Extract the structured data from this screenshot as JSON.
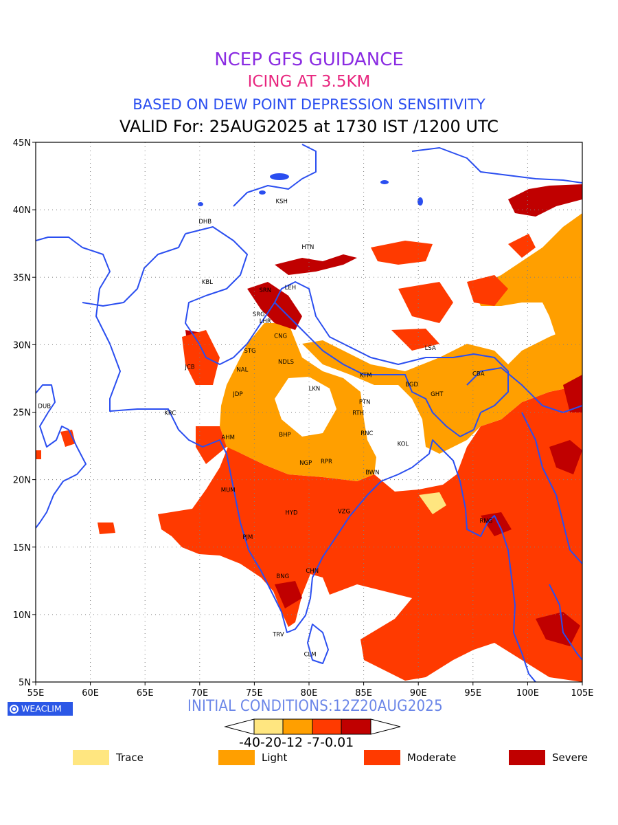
{
  "header": {
    "line1": "NCEP GFS GUIDANCE",
    "line2": "ICING AT 3.5KM",
    "line3": "BASED ON DEW POINT DEPRESSION SENSITIVITY",
    "line4": "VALID For: 25AUG2025 at 1730 IST /1200 UTC"
  },
  "axes": {
    "lat_labels": [
      "45N",
      "40N",
      "35N",
      "30N",
      "25N",
      "20N",
      "15N",
      "10N",
      "5N"
    ],
    "lon_labels": [
      "55E",
      "60E",
      "65E",
      "70E",
      "75E",
      "80E",
      "85E",
      "90E",
      "95E",
      "100E",
      "105E"
    ],
    "lon_range": [
      55,
      105
    ],
    "lat_range": [
      5,
      45
    ]
  },
  "stations": [
    {
      "code": "KSH",
      "lon": 77.5,
      "lat": 40.5
    },
    {
      "code": "DHB",
      "lon": 70.5,
      "lat": 39.0
    },
    {
      "code": "HTN",
      "lon": 79.9,
      "lat": 37.1
    },
    {
      "code": "KBL",
      "lon": 70.7,
      "lat": 34.5
    },
    {
      "code": "SRN",
      "lon": 76.0,
      "lat": 33.9
    },
    {
      "code": "SRG",
      "lon": 75.4,
      "lat": 32.1
    },
    {
      "code": "LHR",
      "lon": 76.0,
      "lat": 31.6
    },
    {
      "code": "LEH",
      "lon": 78.3,
      "lat": 34.1
    },
    {
      "code": "CNG",
      "lon": 77.4,
      "lat": 30.5
    },
    {
      "code": "STG",
      "lon": 74.6,
      "lat": 29.4
    },
    {
      "code": "NDLS",
      "lon": 77.9,
      "lat": 28.6
    },
    {
      "code": "JCB",
      "lon": 69.1,
      "lat": 28.2
    },
    {
      "code": "NAL",
      "lon": 73.9,
      "lat": 28.0
    },
    {
      "code": "LKN",
      "lon": 80.5,
      "lat": 26.6
    },
    {
      "code": "KTM",
      "lon": 85.2,
      "lat": 27.6
    },
    {
      "code": "BGD",
      "lon": 89.4,
      "lat": 26.9
    },
    {
      "code": "LSA",
      "lon": 91.1,
      "lat": 29.6
    },
    {
      "code": "CBA",
      "lon": 95.5,
      "lat": 27.7
    },
    {
      "code": "GHT",
      "lon": 91.7,
      "lat": 26.2
    },
    {
      "code": "JDP",
      "lon": 73.5,
      "lat": 26.2
    },
    {
      "code": "PTN",
      "lon": 85.1,
      "lat": 25.6
    },
    {
      "code": "DUB",
      "lon": 55.8,
      "lat": 25.3
    },
    {
      "code": "KRC",
      "lon": 67.3,
      "lat": 24.8
    },
    {
      "code": "RTH",
      "lon": 84.5,
      "lat": 24.8
    },
    {
      "code": "BHP",
      "lon": 77.8,
      "lat": 23.2
    },
    {
      "code": "AHM",
      "lon": 72.6,
      "lat": 23.0
    },
    {
      "code": "RNC",
      "lon": 85.3,
      "lat": 23.3
    },
    {
      "code": "KOL",
      "lon": 88.6,
      "lat": 22.5
    },
    {
      "code": "NGP",
      "lon": 79.7,
      "lat": 21.1
    },
    {
      "code": "RPR",
      "lon": 81.6,
      "lat": 21.2
    },
    {
      "code": "BWN",
      "lon": 85.8,
      "lat": 20.4
    },
    {
      "code": "MUM",
      "lon": 72.6,
      "lat": 19.1
    },
    {
      "code": "HYD",
      "lon": 78.4,
      "lat": 17.4
    },
    {
      "code": "VZG",
      "lon": 83.2,
      "lat": 17.5
    },
    {
      "code": "RNG",
      "lon": 96.2,
      "lat": 16.8
    },
    {
      "code": "PJM",
      "lon": 74.4,
      "lat": 15.6
    },
    {
      "code": "CHN",
      "lon": 80.3,
      "lat": 13.1
    },
    {
      "code": "BNG",
      "lon": 77.6,
      "lat": 12.7
    },
    {
      "code": "TRV",
      "lon": 77.2,
      "lat": 8.4
    },
    {
      "code": "CLM",
      "lon": 80.1,
      "lat": 6.9
    }
  ],
  "footer": {
    "logo_text": "WEACLIM",
    "init_conditions": "INITIAL CONDITIONS:12Z20AUG2025",
    "colorbar_ticks": "-40-20-12 -7-0.01"
  },
  "legend": [
    {
      "label": "Trace",
      "color": "#ffe680"
    },
    {
      "label": "Light",
      "color": "#ff9f00"
    },
    {
      "label": "Moderate",
      "color": "#ff3a00"
    },
    {
      "label": "Severe",
      "color": "#c00000"
    }
  ],
  "colors": {
    "coastline": "#2a4ef0",
    "trace": "#ffe680",
    "light": "#ff9f00",
    "moderate": "#ff3a00",
    "severe": "#c00000"
  }
}
